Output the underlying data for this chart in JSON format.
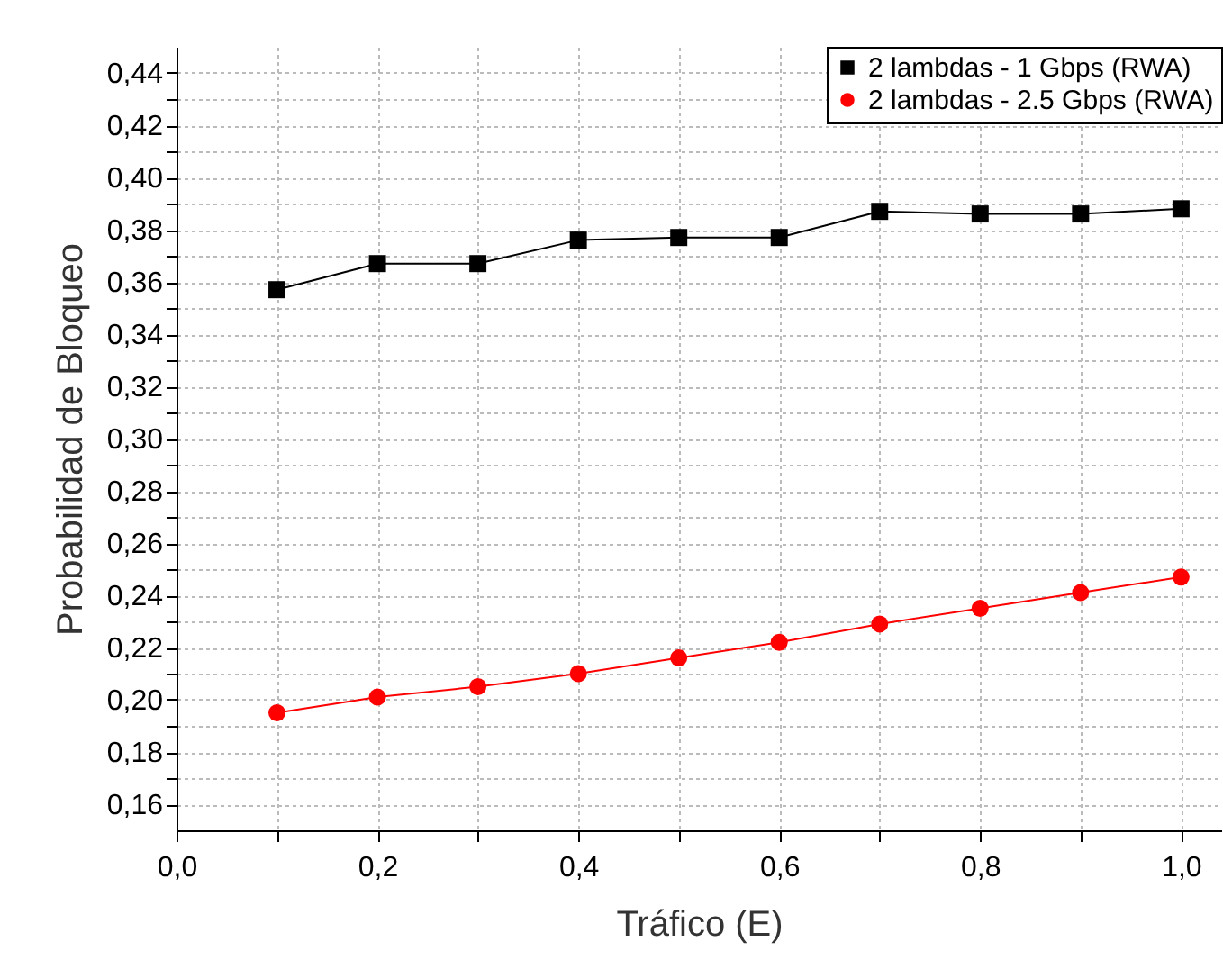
{
  "chart_data": {
    "type": "line",
    "xlabel": "Tráfico (E)",
    "ylabel": "Probabilidad de Bloqueo",
    "x": [
      0.1,
      0.2,
      0.3,
      0.4,
      0.5,
      0.6,
      0.7,
      0.8,
      0.9,
      1.0
    ],
    "series": [
      {
        "name": "2 lambdas - 1 Gbps (RWA)",
        "color": "#000000",
        "marker": "square",
        "values": [
          0.357,
          0.367,
          0.367,
          0.376,
          0.377,
          0.377,
          0.387,
          0.386,
          0.386,
          0.388
        ]
      },
      {
        "name": "2 lambdas - 2.5 Gbps (RWA)",
        "color": "#ff0000",
        "marker": "circle",
        "values": [
          0.195,
          0.201,
          0.205,
          0.21,
          0.216,
          0.222,
          0.229,
          0.235,
          0.241,
          0.247
        ]
      }
    ],
    "xlim": [
      0,
      1.04
    ],
    "xticks": [
      {
        "value": 0,
        "label": "0,0"
      },
      {
        "value": 0.1,
        "label": null
      },
      {
        "value": 0.2,
        "label": "0,2"
      },
      {
        "value": 0.3,
        "label": null
      },
      {
        "value": 0.4,
        "label": "0,4"
      },
      {
        "value": 0.5,
        "label": null
      },
      {
        "value": 0.6,
        "label": "0,6"
      },
      {
        "value": 0.7,
        "label": null
      },
      {
        "value": 0.8,
        "label": "0,8"
      },
      {
        "value": 0.9,
        "label": null
      },
      {
        "value": 1.0,
        "label": "1,0"
      }
    ],
    "ylim": [
      0.15,
      0.45
    ],
    "yticks": [
      {
        "value": 0.16,
        "label": "0,16"
      },
      {
        "value": 0.17,
        "label": null
      },
      {
        "value": 0.18,
        "label": "0,18"
      },
      {
        "value": 0.19,
        "label": null
      },
      {
        "value": 0.2,
        "label": "0,20"
      },
      {
        "value": 0.21,
        "label": null
      },
      {
        "value": 0.22,
        "label": "0,22"
      },
      {
        "value": 0.23,
        "label": null
      },
      {
        "value": 0.24,
        "label": "0,24"
      },
      {
        "value": 0.25,
        "label": null
      },
      {
        "value": 0.26,
        "label": "0,26"
      },
      {
        "value": 0.27,
        "label": null
      },
      {
        "value": 0.28,
        "label": "0,28"
      },
      {
        "value": 0.29,
        "label": null
      },
      {
        "value": 0.3,
        "label": "0,30"
      },
      {
        "value": 0.31,
        "label": null
      },
      {
        "value": 0.32,
        "label": "0,32"
      },
      {
        "value": 0.33,
        "label": null
      },
      {
        "value": 0.34,
        "label": "0,34"
      },
      {
        "value": 0.35,
        "label": null
      },
      {
        "value": 0.36,
        "label": "0,36"
      },
      {
        "value": 0.37,
        "label": null
      },
      {
        "value": 0.38,
        "label": "0,38"
      },
      {
        "value": 0.39,
        "label": null
      },
      {
        "value": 0.4,
        "label": "0,40"
      },
      {
        "value": 0.41,
        "label": null
      },
      {
        "value": 0.42,
        "label": "0,42"
      },
      {
        "value": 0.43,
        "label": null
      },
      {
        "value": 0.44,
        "label": "0,44"
      }
    ],
    "grid": true,
    "legend": "top right",
    "line_style": "solid"
  }
}
